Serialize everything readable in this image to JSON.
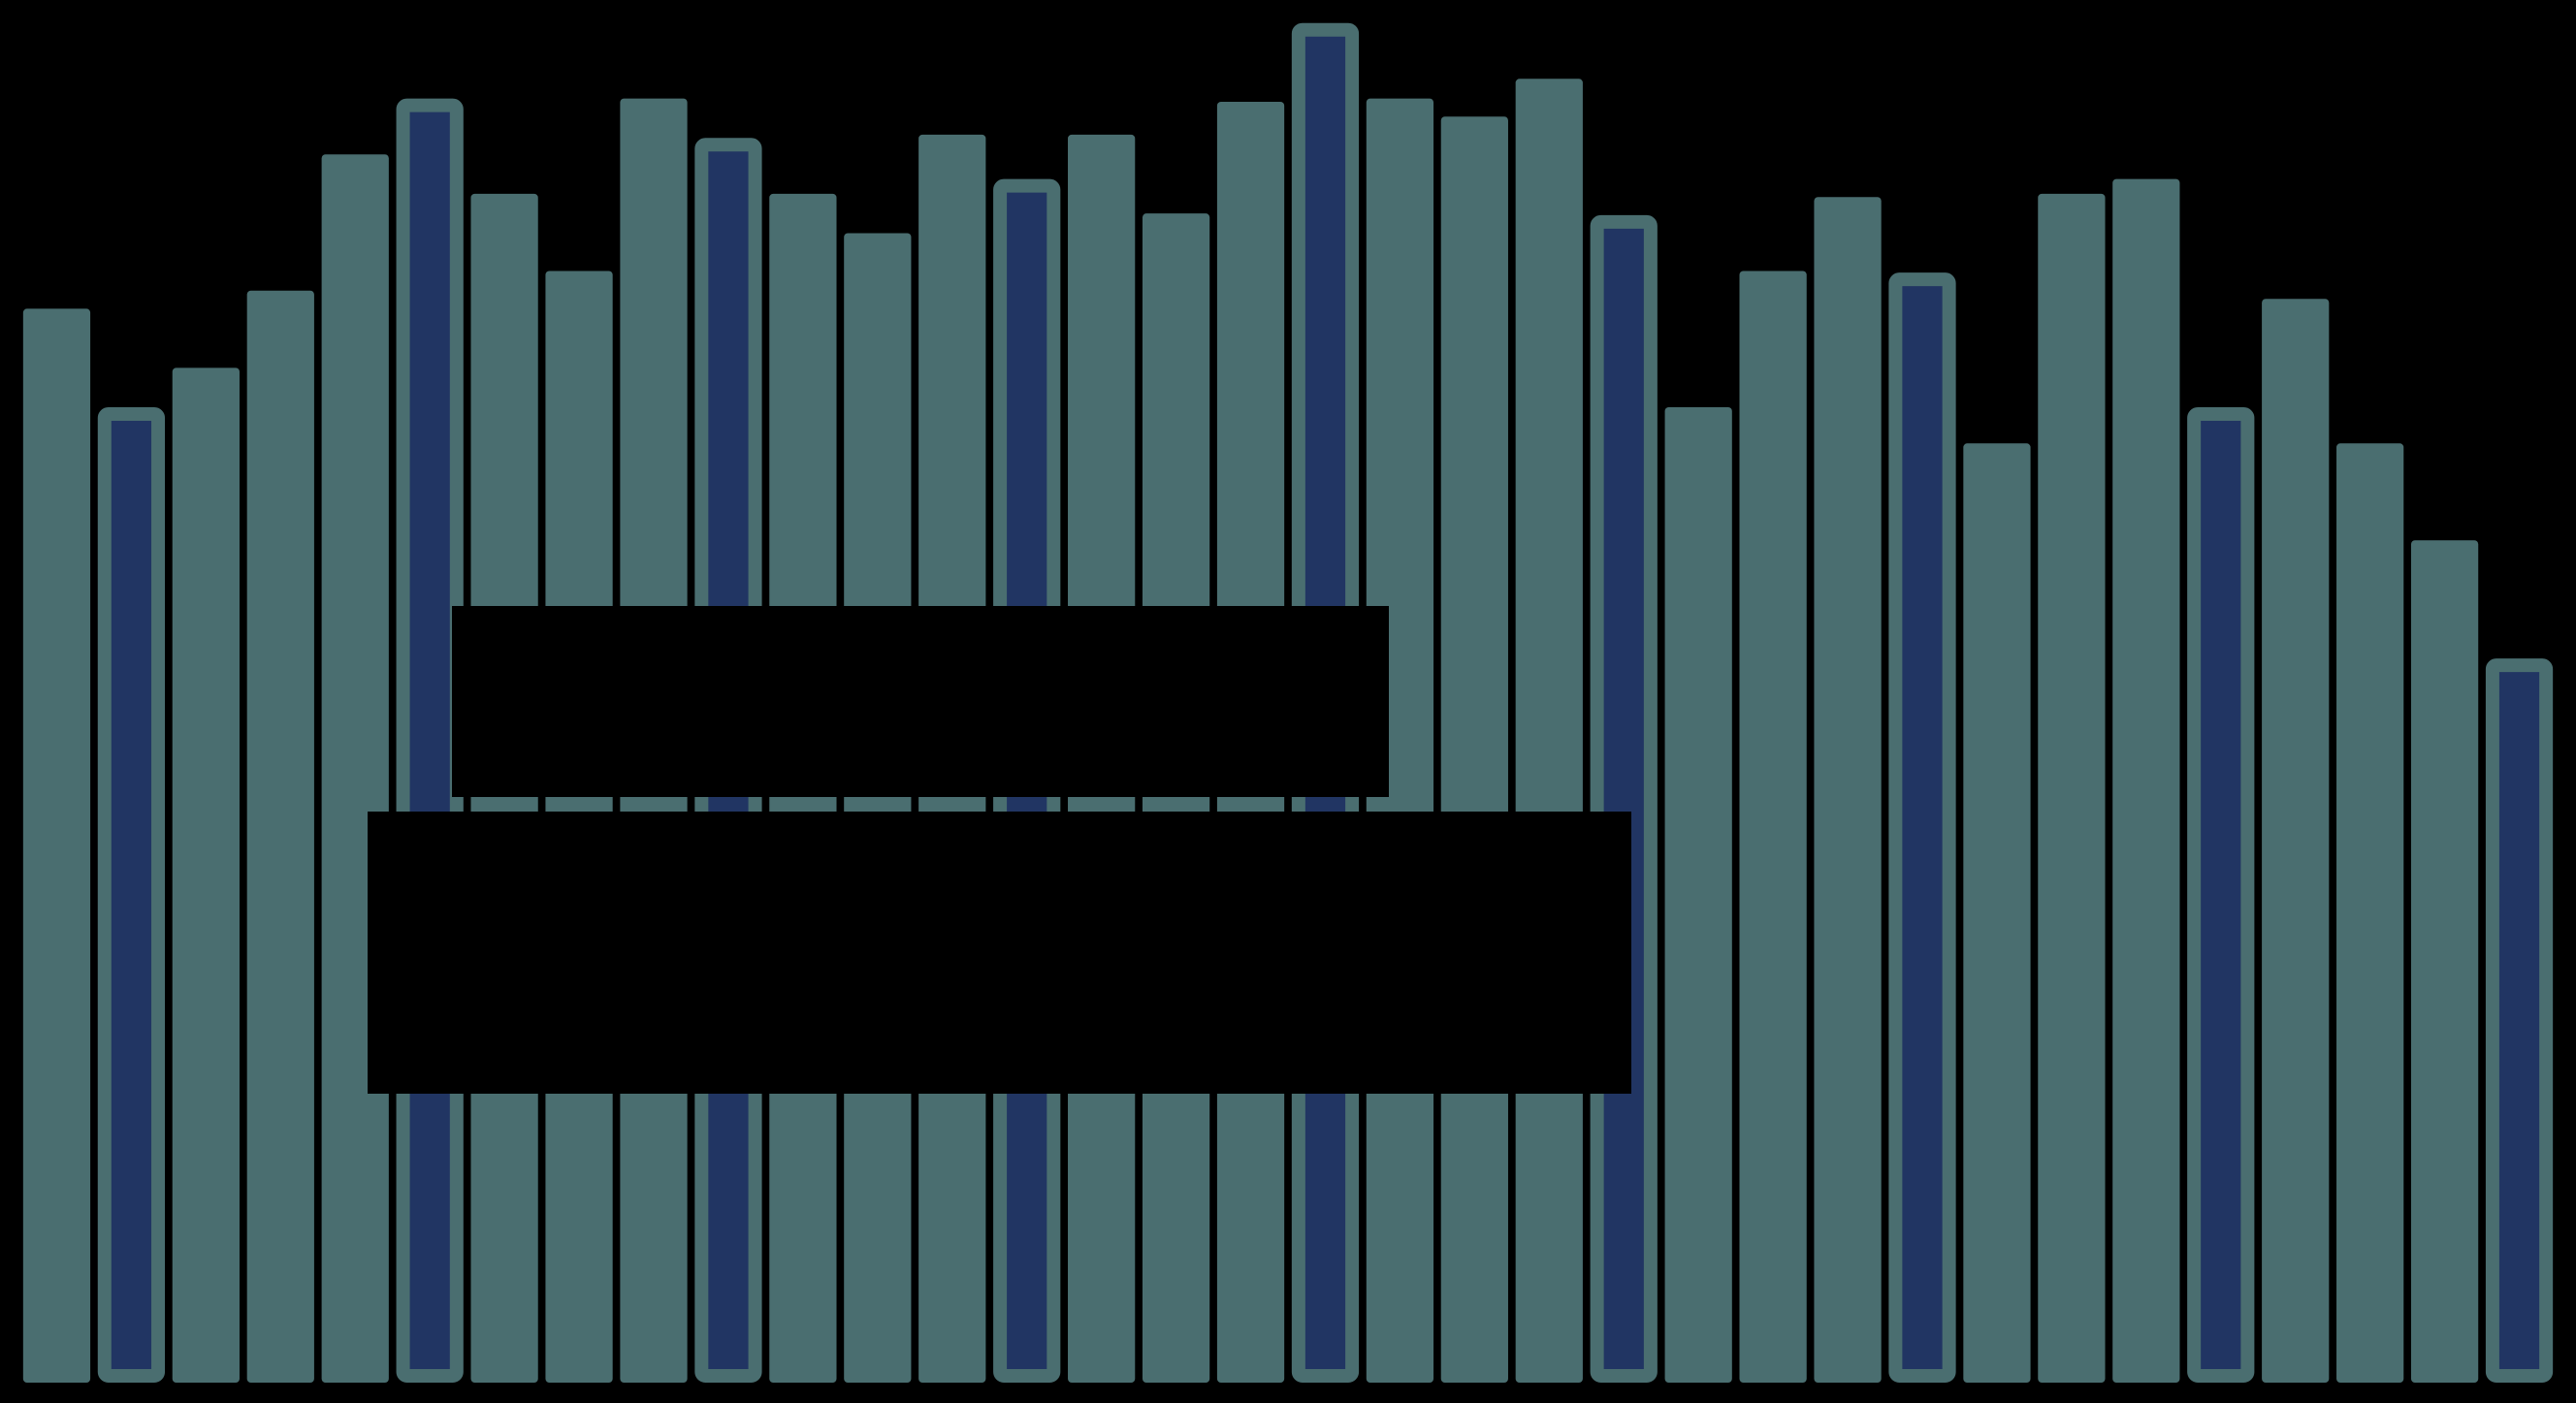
{
  "chart_data": {
    "type": "bar",
    "values": [
      654,
      594,
      618,
      665,
      748,
      782,
      724,
      677,
      782,
      758,
      724,
      700,
      760,
      733,
      760,
      712,
      780,
      828,
      782,
      771,
      794,
      711,
      594,
      677,
      722,
      676,
      572,
      724,
      733,
      594,
      660,
      572,
      513,
      441
    ],
    "colors": [
      "#4a6e70",
      "#213563",
      "#4a6e70",
      "#4a6e70",
      "#4a6e70",
      "#213563",
      "#4a6e70",
      "#4a6e70",
      "#4a6e70",
      "#213563",
      "#4a6e70",
      "#4a6e70",
      "#4a6e70",
      "#213563",
      "#4a6e70",
      "#4a6e70",
      "#4a6e70",
      "#213563",
      "#4a6e70",
      "#4a6e70",
      "#4a6e70",
      "#213563",
      "#4a6e70",
      "#4a6e70",
      "#4a6e70",
      "#213563",
      "#4a6e70",
      "#4a6e70",
      "#4a6e70",
      "#213563",
      "#4a6e70",
      "#4a6e70",
      "#4a6e70",
      "#213563"
    ],
    "edge_color": "#4a6e70",
    "ylim": [
      0,
      842
    ]
  }
}
